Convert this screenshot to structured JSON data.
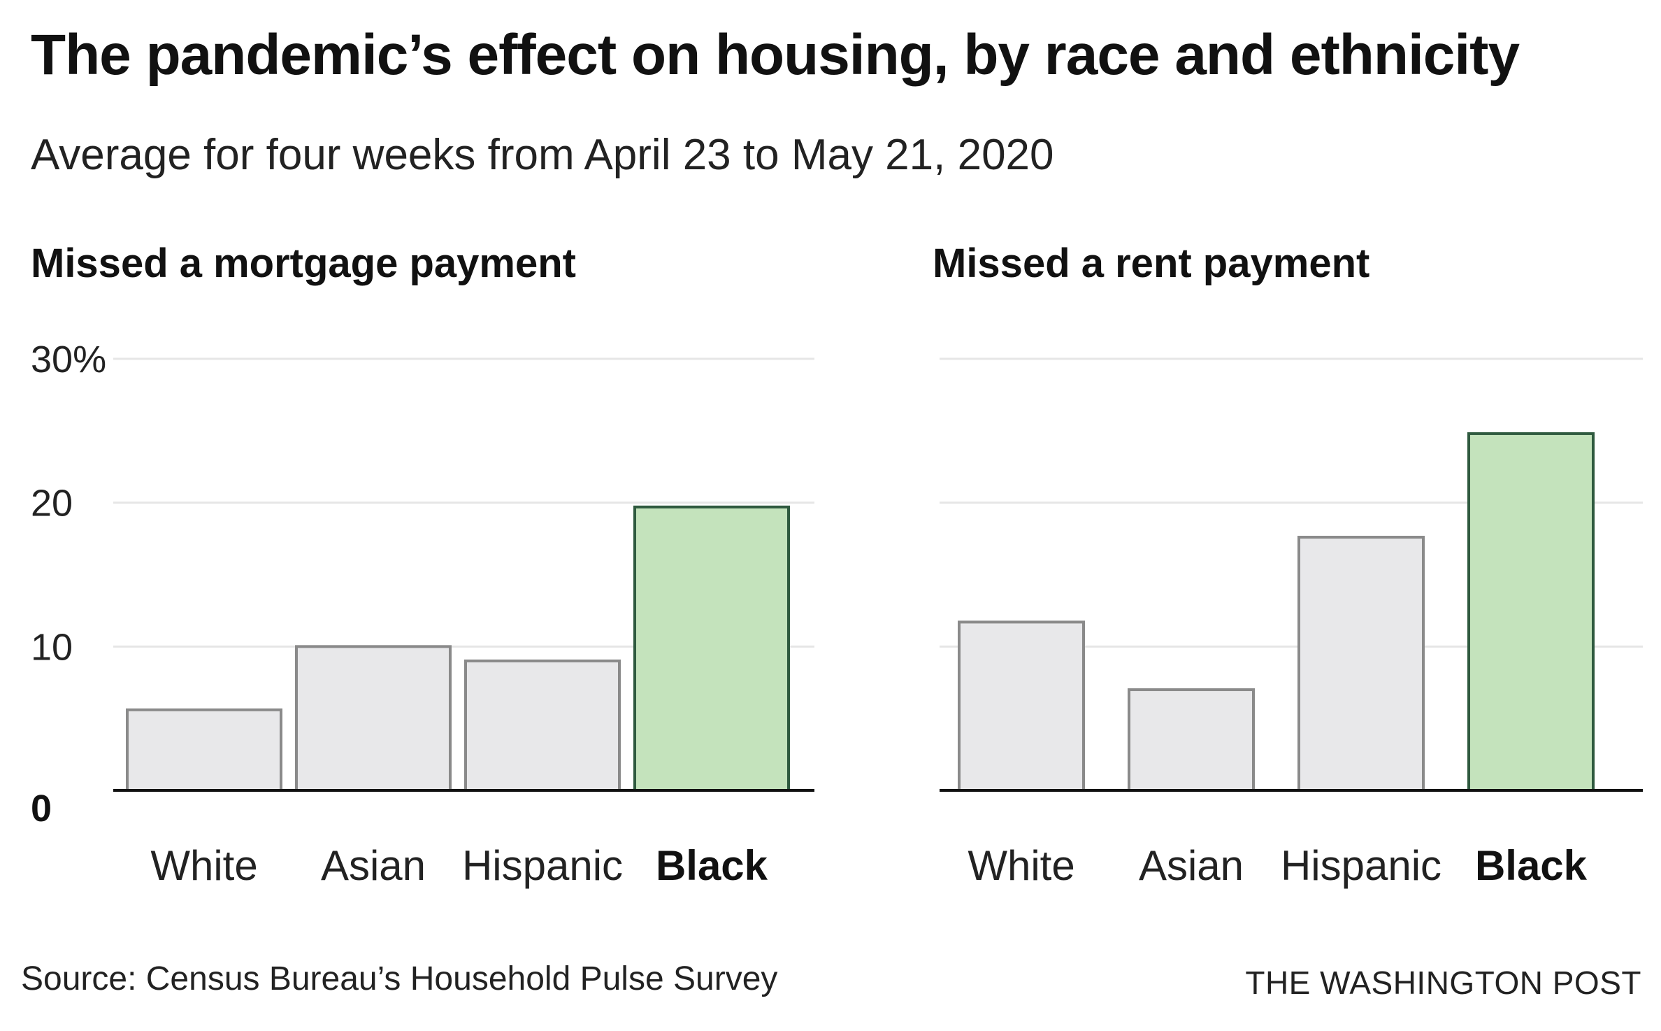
{
  "title": "The pandemic’s effect on housing, by race and ethnicity",
  "subtitle": "Average for four weeks from April 23 to May 21, 2020",
  "source": "Source: Census Bureau’s Household Pulse Survey",
  "credit": "THE WASHINGTON POST",
  "colors": {
    "bar_fill": "#e8e8ea",
    "bar_stroke": "#8a8a8a",
    "highlight_fill": "#c4e3bc",
    "highlight_stroke": "#2f5a3f",
    "grid": "#e6e6e6",
    "axis": "#111111"
  },
  "chart_data": [
    {
      "type": "bar",
      "title": "Missed a mortgage payment",
      "categories": [
        "White",
        "Asian",
        "Hispanic",
        "Black"
      ],
      "values": [
        5.6,
        10,
        9,
        19.7
      ],
      "highlight": "Black",
      "yticks": [
        "0",
        "10",
        "20",
        "30%"
      ],
      "ylim": [
        0,
        30
      ],
      "grid": true
    },
    {
      "type": "bar",
      "title": "Missed a rent payment",
      "categories": [
        "White",
        "Asian",
        "Hispanic",
        "Black"
      ],
      "values": [
        11.7,
        7,
        17.6,
        24.8
      ],
      "highlight": "Black",
      "ylim": [
        0,
        30
      ],
      "grid": true
    }
  ]
}
